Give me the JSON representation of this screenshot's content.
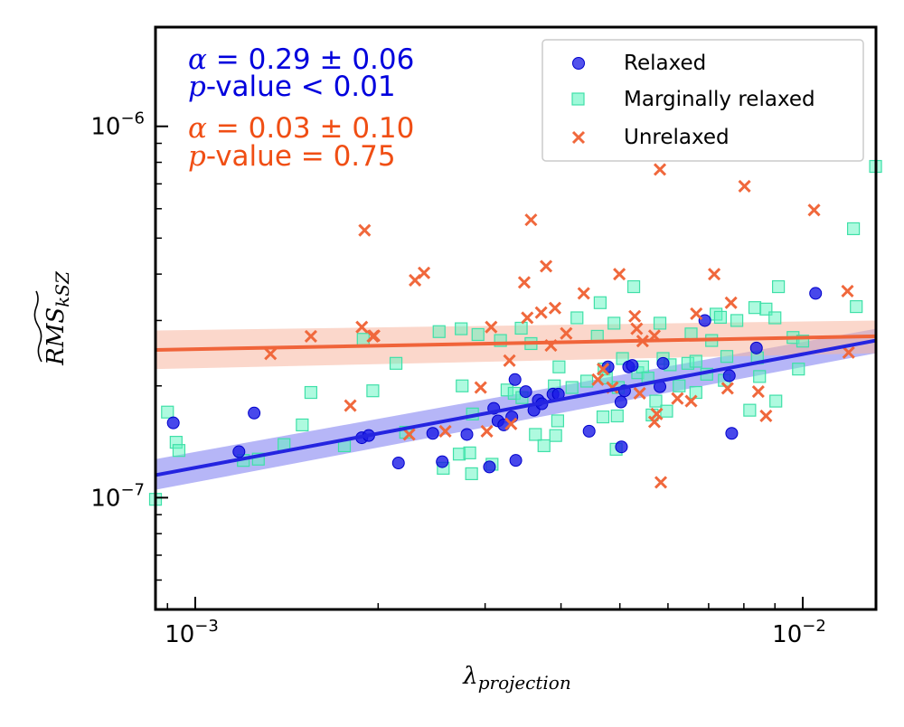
{
  "chart_data": {
    "type": "scatter",
    "xscale": "log",
    "yscale": "log",
    "xlim": [
      0.00086,
      0.0132
    ],
    "ylim": [
      5e-08,
      1.85e-06
    ],
    "x_ticks": [
      {
        "value": 0.001,
        "label": "10",
        "exp": "−3"
      },
      {
        "value": 0.01,
        "label": "10",
        "exp": "−2"
      }
    ],
    "y_ticks": [
      {
        "value": 1e-07,
        "label": "10",
        "exp": "−7"
      },
      {
        "value": 1e-06,
        "label": "10",
        "exp": "−6"
      }
    ],
    "xlabel": {
      "main": "λ",
      "sub": "projection"
    },
    "ylabel": {
      "main": "RMS",
      "sub": "kSZ"
    },
    "grid": false,
    "legend_position": "top-right",
    "legend": [
      {
        "label": "Relaxed",
        "marker": "circle",
        "color": "#1a1ae6"
      },
      {
        "label": "Marginally relaxed",
        "marker": "square",
        "color": "#5ef5c0"
      },
      {
        "label": "Unrelaxed",
        "marker": "x",
        "color": "#f0683c"
      }
    ],
    "annotations": [
      {
        "group": "relaxed",
        "alpha_label": "α",
        "alpha_text": " = 0.29 ± 0.06",
        "p_label": "p",
        "p_text": "-value  < 0.01",
        "color": "#0000dd"
      },
      {
        "group": "unrelaxed",
        "alpha_label": "α",
        "alpha_text": " = 0.03 ± 0.10",
        "p_label": "p",
        "p_text": "-value  = 0.75",
        "color": "#f04e14"
      }
    ],
    "fits": [
      {
        "group": "relaxed",
        "x0": 0.00086,
        "y0": 1.15e-07,
        "x1": 0.0132,
        "y1": 2.65e-07,
        "band_lo": [
          1.05e-07,
          2.45e-07
        ],
        "band_hi": [
          1.27e-07,
          2.85e-07
        ],
        "color": "#2424e0",
        "band_color": "#7a7af0"
      },
      {
        "group": "unrelaxed",
        "x0": 0.00086,
        "y0": 2.5e-07,
        "x1": 0.0132,
        "y1": 2.72e-07,
        "band_lo": [
          2.22e-07,
          2.45e-07
        ],
        "band_hi": [
          2.82e-07,
          3e-07
        ],
        "color": "#f0643a",
        "band_color": "#f7b7a0"
      }
    ],
    "series": [
      {
        "name": "Relaxed",
        "marker": "circle",
        "color": "#1a1ae6",
        "points": [
          [
            0.00092,
            1.59e-07
          ],
          [
            0.00118,
            1.33e-07
          ],
          [
            0.00125,
            1.69e-07
          ],
          [
            0.00188,
            1.45e-07
          ],
          [
            0.00193,
            1.47e-07
          ],
          [
            0.00216,
            1.24e-07
          ],
          [
            0.00246,
            1.49e-07
          ],
          [
            0.00255,
            1.25e-07
          ],
          [
            0.0028,
            1.48e-07
          ],
          [
            0.00305,
            1.21e-07
          ],
          [
            0.0031,
            1.74e-07
          ],
          [
            0.00315,
            1.61e-07
          ],
          [
            0.00322,
            1.57e-07
          ],
          [
            0.00332,
            1.65e-07
          ],
          [
            0.00337,
            1.26e-07
          ],
          [
            0.00336,
            2.08e-07
          ],
          [
            0.0035,
            1.93e-07
          ],
          [
            0.00361,
            1.72e-07
          ],
          [
            0.00367,
            1.83e-07
          ],
          [
            0.00372,
            1.79e-07
          ],
          [
            0.00388,
            1.9e-07
          ],
          [
            0.00396,
            1.9e-07
          ],
          [
            0.00445,
            1.51e-07
          ],
          [
            0.00478,
            2.25e-07
          ],
          [
            0.00502,
            1.81e-07
          ],
          [
            0.00509,
            1.94e-07
          ],
          [
            0.00503,
            1.37e-07
          ],
          [
            0.00517,
            2.25e-07
          ],
          [
            0.00524,
            2.27e-07
          ],
          [
            0.00582,
            1.99e-07
          ],
          [
            0.00589,
            2.3e-07
          ],
          [
            0.0069,
            3e-07
          ],
          [
            0.00757,
            2.13e-07
          ],
          [
            0.00764,
            1.49e-07
          ],
          [
            0.00839,
            2.53e-07
          ],
          [
            0.0105,
            3.55e-07
          ]
        ]
      },
      {
        "name": "Marginally relaxed",
        "marker": "square",
        "color": "#5ef5c0",
        "points": [
          [
            0.00086,
            9.9e-08
          ],
          [
            0.0009,
            1.7e-07
          ],
          [
            0.00093,
            1.41e-07
          ],
          [
            0.00094,
            1.34e-07
          ],
          [
            0.0012,
            1.26e-07
          ],
          [
            0.00127,
            1.27e-07
          ],
          [
            0.0014,
            1.39e-07
          ],
          [
            0.0015,
            1.57e-07
          ],
          [
            0.00155,
            1.92e-07
          ],
          [
            0.00176,
            1.38e-07
          ],
          [
            0.00189,
            2.67e-07
          ],
          [
            0.00196,
            1.94e-07
          ],
          [
            0.00214,
            2.3e-07
          ],
          [
            0.00222,
            1.5e-07
          ],
          [
            0.00252,
            2.8e-07
          ],
          [
            0.00256,
            1.2e-07
          ],
          [
            0.00272,
            1.31e-07
          ],
          [
            0.00274,
            2.85e-07
          ],
          [
            0.00275,
            2e-07
          ],
          [
            0.00283,
            1.32e-07
          ],
          [
            0.00285,
            1.16e-07
          ],
          [
            0.00286,
            1.68e-07
          ],
          [
            0.00292,
            2.75e-07
          ],
          [
            0.00308,
            1.23e-07
          ],
          [
            0.00318,
            2.65e-07
          ],
          [
            0.00326,
            1.95e-07
          ],
          [
            0.00335,
            1.91e-07
          ],
          [
            0.00344,
            2.86e-07
          ],
          [
            0.00345,
            1.86e-07
          ],
          [
            0.00357,
            2.6e-07
          ],
          [
            0.00363,
            1.48e-07
          ],
          [
            0.00375,
            1.38e-07
          ],
          [
            0.0039,
            2e-07
          ],
          [
            0.00392,
            1.47e-07
          ],
          [
            0.00395,
            1.61e-07
          ],
          [
            0.00397,
            2.25e-07
          ],
          [
            0.00417,
            1.98e-07
          ],
          [
            0.00425,
            3.05e-07
          ],
          [
            0.00441,
            2.06e-07
          ],
          [
            0.00459,
            2.72e-07
          ],
          [
            0.00464,
            3.35e-07
          ],
          [
            0.00469,
            1.65e-07
          ],
          [
            0.00471,
            2.22e-07
          ],
          [
            0.00475,
            2.1e-07
          ],
          [
            0.00489,
            2.95e-07
          ],
          [
            0.00493,
            1.35e-07
          ],
          [
            0.00495,
            1.66e-07
          ],
          [
            0.00497,
            1.98e-07
          ],
          [
            0.00505,
            2.37e-07
          ],
          [
            0.00527,
            3.7e-07
          ],
          [
            0.00535,
            2.17e-07
          ],
          [
            0.00545,
            2.25e-07
          ],
          [
            0.00556,
            2.1e-07
          ],
          [
            0.00565,
            1.67e-07
          ],
          [
            0.00573,
            1.82e-07
          ],
          [
            0.00582,
            2.95e-07
          ],
          [
            0.00589,
            2.37e-07
          ],
          [
            0.00597,
            1.71e-07
          ],
          [
            0.00605,
            2.28e-07
          ],
          [
            0.00626,
            2e-07
          ],
          [
            0.00647,
            2.3e-07
          ],
          [
            0.00655,
            2.76e-07
          ],
          [
            0.00667,
            2.33e-07
          ],
          [
            0.00667,
            1.92e-07
          ],
          [
            0.00695,
            2.15e-07
          ],
          [
            0.00708,
            2.65e-07
          ],
          [
            0.0072,
            3.12e-07
          ],
          [
            0.00732,
            3.06e-07
          ],
          [
            0.00743,
            2.07e-07
          ],
          [
            0.0075,
            2.4e-07
          ],
          [
            0.00779,
            3e-07
          ],
          [
            0.00818,
            1.72e-07
          ],
          [
            0.00834,
            3.25e-07
          ],
          [
            0.00842,
            2.38e-07
          ],
          [
            0.00849,
            2.12e-07
          ],
          [
            0.0087,
            3.22e-07
          ],
          [
            0.009,
            3.05e-07
          ],
          [
            0.00903,
            1.82e-07
          ],
          [
            0.00912,
            3.7e-07
          ],
          [
            0.00964,
            2.7e-07
          ],
          [
            0.00984,
            2.22e-07
          ],
          [
            0.01,
            2.64e-07
          ],
          [
            0.01212,
            5.3e-07
          ],
          [
            0.01225,
            3.27e-07
          ],
          [
            0.01318,
            7.8e-07
          ]
        ]
      },
      {
        "name": "Unrelaxed",
        "marker": "x",
        "color": "#f0683c",
        "points": [
          [
            0.00133,
            2.44e-07
          ],
          [
            0.00155,
            2.72e-07
          ],
          [
            0.0018,
            1.77e-07
          ],
          [
            0.00188,
            2.88e-07
          ],
          [
            0.0019,
            5.25e-07
          ],
          [
            0.00196,
            2.72e-07
          ],
          [
            0.00197,
            2.73e-07
          ],
          [
            0.00225,
            1.48e-07
          ],
          [
            0.0023,
            3.85e-07
          ],
          [
            0.00238,
            4.03e-07
          ],
          [
            0.00258,
            1.51e-07
          ],
          [
            0.00295,
            1.98e-07
          ],
          [
            0.00302,
            1.51e-07
          ],
          [
            0.00307,
            2.88e-07
          ],
          [
            0.00331,
            1.58e-07
          ],
          [
            0.00329,
            2.34e-07
          ],
          [
            0.00348,
            3.8e-07
          ],
          [
            0.00352,
            3.05e-07
          ],
          [
            0.00357,
            5.6e-07
          ],
          [
            0.00371,
            3.15e-07
          ],
          [
            0.00378,
            4.2e-07
          ],
          [
            0.00385,
            2.57e-07
          ],
          [
            0.00391,
            3.24e-07
          ],
          [
            0.00408,
            2.77e-07
          ],
          [
            0.00436,
            3.55e-07
          ],
          [
            0.0046,
            2.08e-07
          ],
          [
            0.00469,
            2.22e-07
          ],
          [
            0.00486,
            1.98e-07
          ],
          [
            0.00499,
            4e-07
          ],
          [
            0.00529,
            3.08e-07
          ],
          [
            0.00533,
            2.85e-07
          ],
          [
            0.00539,
            1.91e-07
          ],
          [
            0.00545,
            2.64e-07
          ],
          [
            0.0057,
            1.6e-07
          ],
          [
            0.0057,
            2.73e-07
          ],
          [
            0.00575,
            1.68e-07
          ],
          [
            0.00582,
            7.65e-07
          ],
          [
            0.00584,
            1.1e-07
          ],
          [
            0.00622,
            1.85e-07
          ],
          [
            0.00655,
            1.82e-07
          ],
          [
            0.00668,
            3.13e-07
          ],
          [
            0.00715,
            4e-07
          ],
          [
            0.00752,
            1.97e-07
          ],
          [
            0.00762,
            3.35e-07
          ],
          [
            0.00802,
            6.9e-07
          ],
          [
            0.00845,
            1.93e-07
          ],
          [
            0.0087,
            1.66e-07
          ],
          [
            0.01044,
            5.95e-07
          ],
          [
            0.01185,
            3.6e-07
          ],
          [
            0.0119,
            2.46e-07
          ]
        ]
      }
    ]
  }
}
